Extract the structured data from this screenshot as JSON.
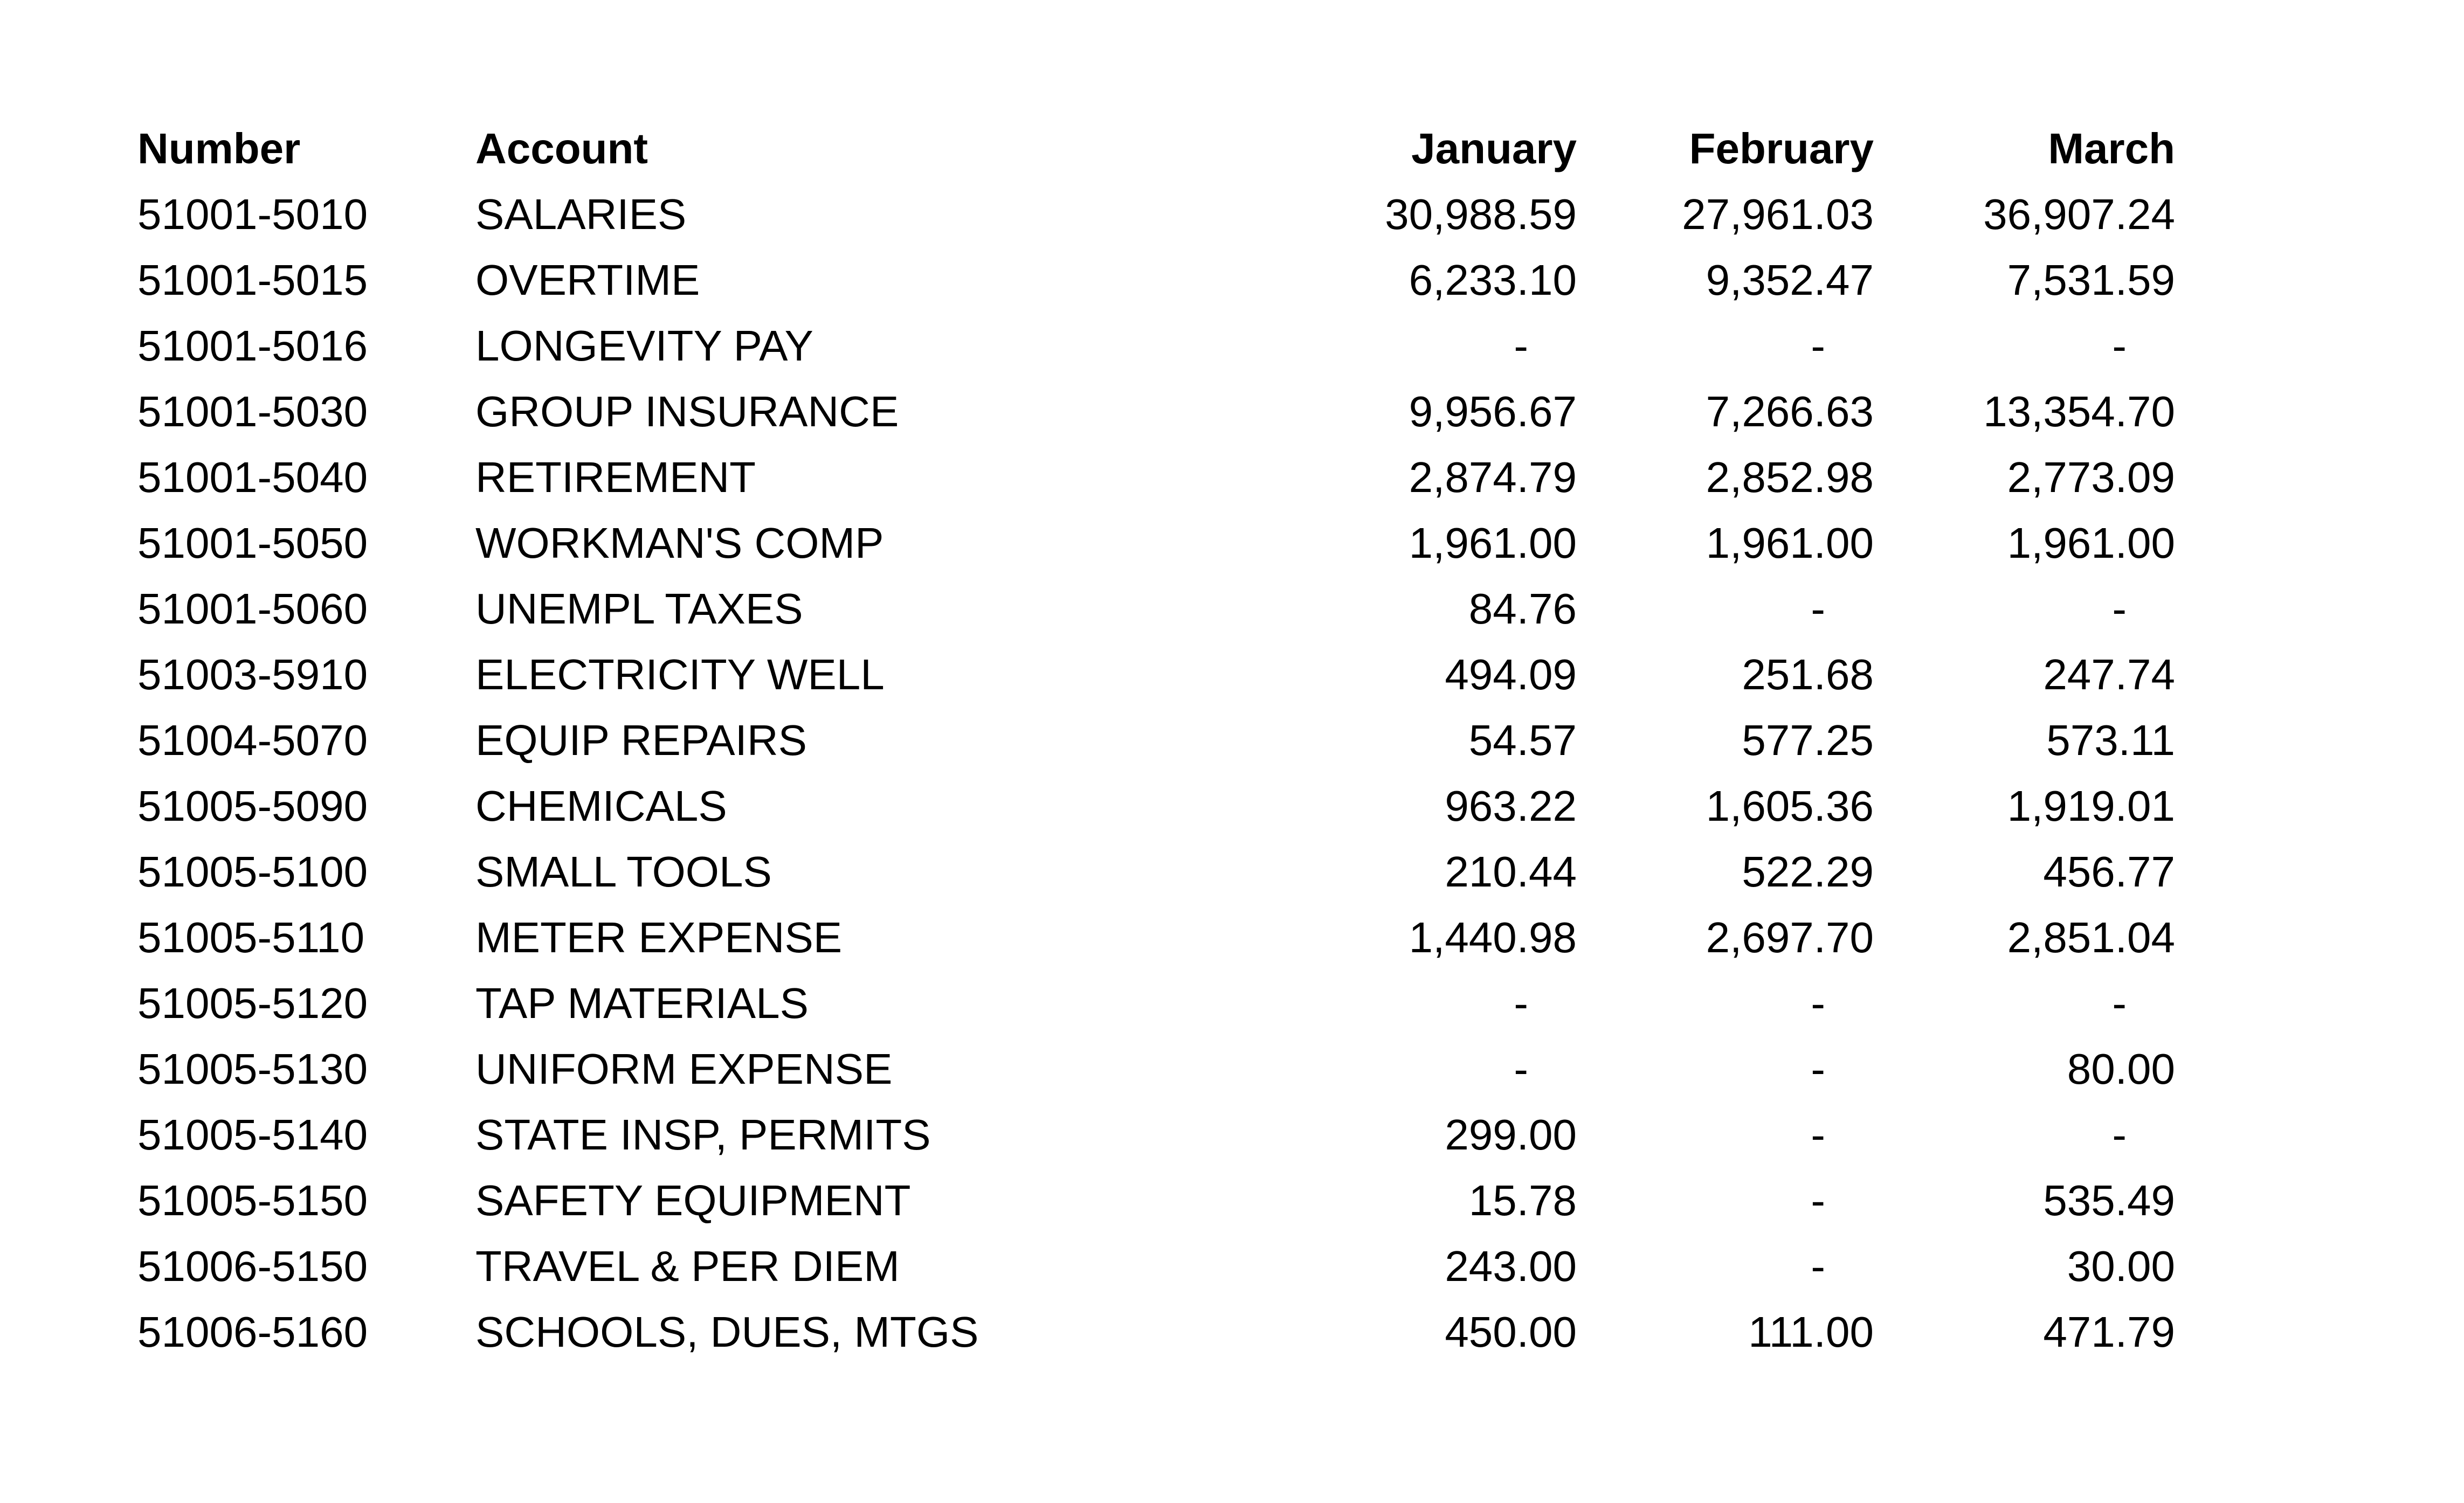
{
  "table": {
    "columns": [
      "Number",
      "Account",
      "January",
      "February",
      "March"
    ],
    "rows": [
      {
        "number": "51001-5010",
        "account": "SALARIES",
        "january": "30,988.59",
        "february": "27,961.03",
        "march": "36,907.24"
      },
      {
        "number": "51001-5015",
        "account": "OVERTIME",
        "january": "6,233.10",
        "february": "9,352.47",
        "march": "7,531.59"
      },
      {
        "number": "51001-5016",
        "account": "LONGEVITY PAY",
        "january": "-",
        "february": "-",
        "march": "-"
      },
      {
        "number": "51001-5030",
        "account": "GROUP INSURANCE",
        "january": "9,956.67",
        "february": "7,266.63",
        "march": "13,354.70"
      },
      {
        "number": "51001-5040",
        "account": "RETIREMENT",
        "january": "2,874.79",
        "february": "2,852.98",
        "march": "2,773.09"
      },
      {
        "number": "51001-5050",
        "account": "WORKMAN'S COMP",
        "january": "1,961.00",
        "february": "1,961.00",
        "march": "1,961.00"
      },
      {
        "number": "51001-5060",
        "account": "UNEMPL TAXES",
        "january": "84.76",
        "february": "-",
        "march": "-"
      },
      {
        "number": "51003-5910",
        "account": "ELECTRICITY WELL",
        "january": "494.09",
        "february": "251.68",
        "march": "247.74"
      },
      {
        "number": "51004-5070",
        "account": "EQUIP REPAIRS",
        "january": "54.57",
        "february": "577.25",
        "march": "573.11"
      },
      {
        "number": "51005-5090",
        "account": "CHEMICALS",
        "january": "963.22",
        "february": "1,605.36",
        "march": "1,919.01"
      },
      {
        "number": "51005-5100",
        "account": "SMALL TOOLS",
        "january": "210.44",
        "february": "522.29",
        "march": "456.77"
      },
      {
        "number": "51005-5110",
        "account": "METER EXPENSE",
        "january": "1,440.98",
        "february": "2,697.70",
        "march": "2,851.04"
      },
      {
        "number": "51005-5120",
        "account": "TAP MATERIALS",
        "january": "-",
        "february": "-",
        "march": "-"
      },
      {
        "number": "51005-5130",
        "account": "UNIFORM EXPENSE",
        "january": "-",
        "february": "-",
        "march": "80.00"
      },
      {
        "number": "51005-5140",
        "account": "STATE INSP, PERMITS",
        "january": "299.00",
        "february": "-",
        "march": "-"
      },
      {
        "number": "51005-5150",
        "account": "SAFETY EQUIPMENT",
        "january": "15.78",
        "february": "-",
        "march": "535.49"
      },
      {
        "number": "51006-5150",
        "account": "TRAVEL & PER DIEM",
        "january": "243.00",
        "february": "-",
        "march": "30.00"
      },
      {
        "number": "51006-5160",
        "account": "SCHOOLS, DUES, MTGS",
        "january": "450.00",
        "february": "111.00",
        "march": "471.79"
      }
    ]
  }
}
